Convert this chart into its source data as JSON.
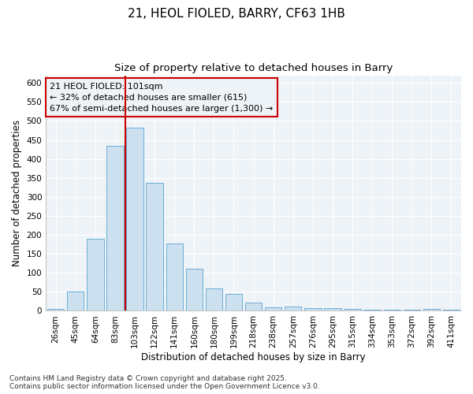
{
  "title_line1": "21, HEOL FIOLED, BARRY, CF63 1HB",
  "title_line2": "Size of property relative to detached houses in Barry",
  "xlabel": "Distribution of detached houses by size in Barry",
  "ylabel": "Number of detached properties",
  "categories": [
    "26sqm",
    "45sqm",
    "64sqm",
    "83sqm",
    "103sqm",
    "122sqm",
    "141sqm",
    "160sqm",
    "180sqm",
    "199sqm",
    "218sqm",
    "238sqm",
    "257sqm",
    "276sqm",
    "295sqm",
    "315sqm",
    "334sqm",
    "353sqm",
    "372sqm",
    "392sqm",
    "411sqm"
  ],
  "values": [
    5,
    50,
    190,
    435,
    483,
    338,
    178,
    110,
    60,
    45,
    22,
    10,
    12,
    7,
    7,
    5,
    4,
    4,
    3,
    5,
    3
  ],
  "bar_color": "#cce0f0",
  "bar_edge_color": "#6aaed6",
  "vline_color": "#cc0000",
  "vline_x_index": 4,
  "annotation_text": "21 HEOL FIOLED: 101sqm\n← 32% of detached houses are smaller (615)\n67% of semi-detached houses are larger (1,300) →",
  "annotation_box_color": "#cc0000",
  "ylim": [
    0,
    620
  ],
  "yticks": [
    0,
    50,
    100,
    150,
    200,
    250,
    300,
    350,
    400,
    450,
    500,
    550,
    600
  ],
  "footer": "Contains HM Land Registry data © Crown copyright and database right 2025.\nContains public sector information licensed under the Open Government Licence v3.0.",
  "background_color": "#ffffff",
  "plot_bg_color": "#eef3f8",
  "grid_color": "#ffffff",
  "title_fontsize": 11,
  "subtitle_fontsize": 9.5,
  "axis_label_fontsize": 8.5,
  "tick_fontsize": 7.5,
  "annotation_fontsize": 8,
  "footer_fontsize": 6.5
}
